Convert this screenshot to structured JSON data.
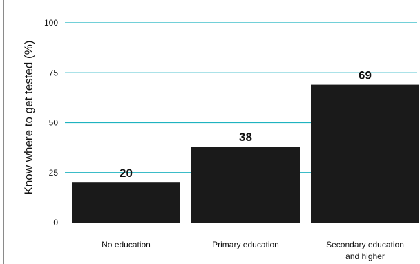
{
  "chart_data": {
    "type": "bar",
    "categories": [
      [
        "No education"
      ],
      [
        "Primary education"
      ],
      [
        "Secondary education",
        "and higher"
      ]
    ],
    "values": [
      20,
      38,
      69
    ],
    "data_labels": [
      "20",
      "38",
      "69"
    ],
    "ylabel": "Know where to get tested (%)",
    "ylim": [
      0,
      100
    ],
    "yticks": [
      0,
      25,
      50,
      75,
      100
    ],
    "grid": true,
    "colors": {
      "bar": "#1a1a1a",
      "grid": "#1fb3c0",
      "text": "#111111"
    }
  }
}
